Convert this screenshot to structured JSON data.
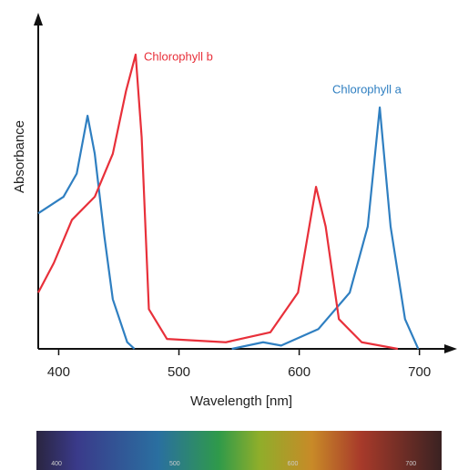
{
  "chart_data": {
    "type": "line",
    "x_label": "Wavelength [nm]",
    "y_label": "Absorbance",
    "xlim": [
      383,
      726
    ],
    "ylim": [
      0,
      100
    ],
    "xticks": [
      400,
      500,
      600,
      700
    ],
    "spectrum_ticks": [
      400,
      500,
      600,
      700
    ],
    "series": [
      {
        "name": "Chlorophyll a",
        "color": "#2f7fc1",
        "x": [
          383,
          404,
          415,
          424,
          430,
          438,
          445,
          457,
          463,
          500,
          544,
          570,
          585,
          616,
          642,
          657,
          667,
          676,
          688,
          699
        ],
        "values": [
          41,
          46,
          53,
          70.5,
          59,
          34,
          15,
          2,
          0,
          null,
          0,
          2,
          1,
          6,
          17,
          37,
          73,
          37,
          9,
          0
        ]
      },
      {
        "name": "Chlorophyll b",
        "color": "#e8303a",
        "x": [
          383,
          396,
          411,
          430,
          445,
          456,
          464,
          469,
          475,
          490,
          539,
          576,
          599,
          614,
          622,
          633,
          652,
          682
        ],
        "values": [
          17,
          26,
          39,
          46,
          59,
          78,
          89,
          64,
          12,
          3,
          2,
          5,
          17,
          49,
          37,
          9,
          2,
          0
        ]
      }
    ]
  }
}
